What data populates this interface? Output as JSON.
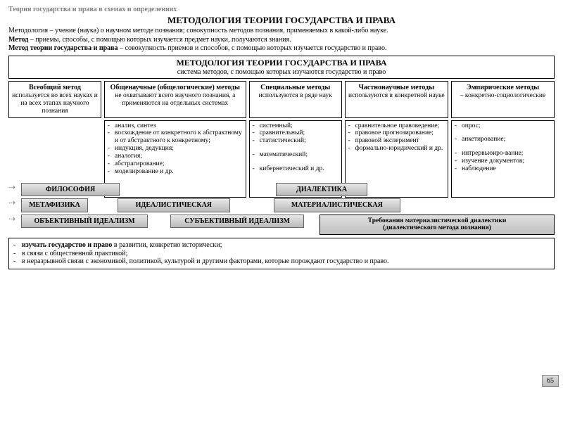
{
  "breadcrumb": "Теория государства и права в схемах и определениях",
  "title": "МЕТОДОЛОГИЯ ТЕОРИИ ГОСУДАРСТВА И ПРАВА",
  "definitions": [
    {
      "term": "Методология",
      "text": " – учение (наука) о научном методе познания; совокупность методов познания, применяемых в какой-либо науке."
    },
    {
      "term": "Метод",
      "text": " – приемы, способы, с помощью которых изучается предмет науки, получаются знания."
    },
    {
      "term": "Метод теории государства и права",
      "text": " – совокупность приемов и способов, с помощью которых изучается государство и право."
    }
  ],
  "main_box": {
    "title": "МЕТОДОЛОГИЯ ТЕОРИИ ГОСУДАРСТВА И ПРАВА",
    "subtitle": "система методов, с помощью которых изучаются государство и право"
  },
  "categories": [
    {
      "title": "Всеобщий метод",
      "desc": "используется во всех науках и на всех этапах научного познания"
    },
    {
      "title": "Общенаучные (общелогические) методы",
      "desc": "не охватывают всего научного познания, а применяются на отдельных системах"
    },
    {
      "title": "Специальные методы",
      "desc": "используются в ряде наук"
    },
    {
      "title": "Частнонаучные методы",
      "desc": "используются в конкретной науке"
    },
    {
      "title": "Эмпирические методы",
      "desc": " – конкретно-социологические"
    }
  ],
  "lists": [
    [],
    [
      "анализ, синтез",
      "восхождение от конкретного к абстрактному и от абстрактного к конкретному;",
      "индукция, дедукция;",
      "аналогия;",
      "абстрагирование;",
      "моделирование и др."
    ],
    [
      "системный;",
      "сравнительный;",
      "статистический;",
      "",
      "математический;",
      "",
      "кибернетический и др."
    ],
    [
      "сравнительное правоведение;",
      "правовое прогнозирование;",
      "правовой эксперимент",
      "формально-юридический и др."
    ],
    [
      "опрос;",
      "",
      "анкетирование;",
      "",
      "интрервьюиро-вание;",
      "изучение документов;",
      "наблюдение"
    ]
  ],
  "grad_buttons": {
    "philosophy": "ФИЛОСОФИЯ",
    "dialectic": "ДИАЛЕКТИКА",
    "metaphysics": "МЕТАФИЗИКА",
    "idealistic": "ИДЕАЛИСТИЧЕСКАЯ",
    "materialistic": "МАТЕРИАЛИСТИЧЕСКАЯ",
    "obj_idealism": "ОБЪЕКТИВНЫЙ ИДЕАЛИЗМ",
    "subj_idealism": "СУБЪЕКТИВНЫЙ ИДЕАЛИЗМ"
  },
  "req_box": {
    "line1": "Требования материалистической диалектики",
    "line2": "(диалектического метода познания)"
  },
  "bottom_items": [
    {
      "b": "изучать государство и право",
      "rest": " в развитии, конкретно исторически;"
    },
    {
      "b": "",
      "rest": "в связи с общественной практикой;"
    },
    {
      "b": "",
      "rest": "в неразрывной связи с экономикой, политикой, культурой и другими факторами, которые порождают государство и право."
    }
  ],
  "page_number": "65",
  "layout": {
    "type": "flowchart",
    "cat_widths": [
      "17%",
      "26%",
      "17%",
      "19%",
      "19%"
    ],
    "gradient": [
      "#e8e8e8",
      "#b8b8b8"
    ],
    "border_color": "#000000",
    "bg": "#ffffff"
  }
}
